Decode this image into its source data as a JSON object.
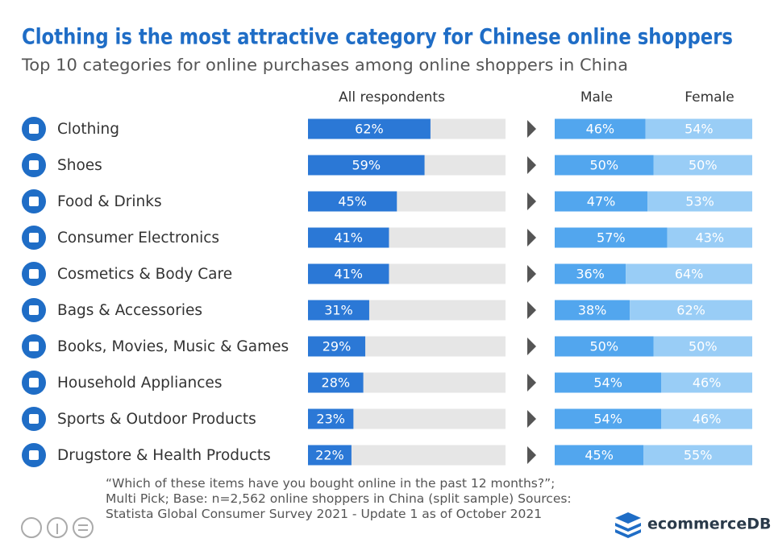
{
  "chart_data": [
    {
      "type": "bar",
      "title": "Clothing is the most attractive category for Chinese online shoppers",
      "subtitle": "Top 10 categories for online purchases among online shoppers in China",
      "categories": [
        "Clothing",
        "Shoes",
        "Food & Drinks",
        "Consumer Electronics",
        "Cosmetics & Body Care",
        "Bags & Accessories",
        "Books, Movies, Music & Games",
        "Household Appliances",
        "Sports & Outdoor Products",
        "Drugstore & Health Products"
      ],
      "series": [
        {
          "name": "All respondents",
          "color": "#2b78d6",
          "values": [
            62,
            59,
            45,
            41,
            41,
            31,
            29,
            28,
            23,
            22
          ],
          "value_labels": [
            "62%",
            "59%",
            "45%",
            "41%",
            "41%",
            "31%",
            "29%",
            "28%",
            "23%",
            "22%"
          ]
        }
      ],
      "xlim": [
        0,
        100
      ]
    },
    {
      "type": "stacked_bar",
      "series": [
        {
          "name": "Male",
          "color": "#52a6ee",
          "values": [
            46,
            50,
            47,
            57,
            36,
            38,
            50,
            54,
            54,
            45
          ],
          "value_labels": [
            "46%",
            "50%",
            "47%",
            "57%",
            "36%",
            "38%",
            "50%",
            "54%",
            "54%",
            "45%"
          ]
        },
        {
          "name": "Female",
          "color": "#99cdf6",
          "values": [
            54,
            50,
            53,
            43,
            64,
            62,
            50,
            46,
            46,
            55
          ],
          "value_labels": [
            "54%",
            "50%",
            "53%",
            "43%",
            "64%",
            "62%",
            "50%",
            "46%",
            "46%",
            "55%"
          ]
        }
      ],
      "xlim": [
        0,
        100
      ]
    }
  ],
  "footer": {
    "note": "“Which of these items have you bought online in the past 12 months?”; Multi Pick; Base: n=2,562  online shoppers in China (split sample) Sources: Statista Global Consumer Survey 2021 - Update 1 as of October 2021",
    "brand": "ecommerceDB"
  }
}
